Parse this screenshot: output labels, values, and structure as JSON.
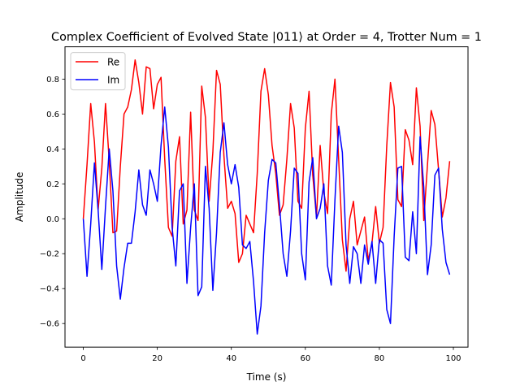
{
  "chart_data": {
    "type": "line",
    "title": "Complex Coefficient of Evolved State |011⟩ at Order = 4, Trotter Num = 1",
    "xlabel": "Time (s)",
    "ylabel": "Amplitude",
    "xlim": [
      -4.95,
      103.95
    ],
    "ylim": [
      -0.735,
      0.985
    ],
    "xticks": [
      0,
      20,
      40,
      60,
      80,
      100
    ],
    "yticks": [
      -0.6,
      -0.4,
      -0.2,
      0.0,
      0.2,
      0.4,
      0.6,
      0.8
    ],
    "xtick_labels": [
      "0",
      "20",
      "40",
      "60",
      "80",
      "100"
    ],
    "ytick_labels": [
      "−0.6",
      "−0.4",
      "−0.2",
      "0.0",
      "0.2",
      "0.4",
      "0.6",
      "0.8"
    ],
    "grid": false,
    "legend_position": "top-left",
    "x": [
      0,
      1,
      2,
      3,
      4,
      5,
      6,
      7,
      8,
      9,
      10,
      11,
      12,
      13,
      14,
      15,
      16,
      17,
      18,
      19,
      20,
      21,
      22,
      23,
      24,
      25,
      26,
      27,
      28,
      29,
      30,
      31,
      32,
      33,
      34,
      35,
      36,
      37,
      38,
      39,
      40,
      41,
      42,
      43,
      44,
      45,
      46,
      47,
      48,
      49,
      50,
      51,
      52,
      53,
      54,
      55,
      56,
      57,
      58,
      59,
      60,
      61,
      62,
      63,
      64,
      65,
      66,
      67,
      68,
      69,
      70,
      71,
      72,
      73,
      74,
      75,
      76,
      77,
      78,
      79,
      80,
      81,
      82,
      83,
      84,
      85,
      86,
      87,
      88,
      89,
      90,
      91,
      92,
      93,
      94,
      95,
      96,
      97,
      98,
      99
    ],
    "series": [
      {
        "name": "Re",
        "color": "#ff0000",
        "values": [
          0.0,
          0.31,
          0.66,
          0.44,
          0.05,
          0.29,
          0.66,
          0.33,
          -0.08,
          -0.07,
          0.3,
          0.6,
          0.64,
          0.74,
          0.91,
          0.78,
          0.6,
          0.87,
          0.86,
          0.63,
          0.77,
          0.81,
          0.34,
          -0.05,
          -0.1,
          0.33,
          0.47,
          -0.03,
          0.05,
          0.61,
          0.05,
          -0.01,
          0.76,
          0.58,
          0.1,
          0.38,
          0.85,
          0.77,
          0.36,
          0.06,
          0.1,
          0.03,
          -0.25,
          -0.2,
          0.02,
          -0.03,
          -0.08,
          0.26,
          0.73,
          0.86,
          0.71,
          0.42,
          0.26,
          0.02,
          0.08,
          0.34,
          0.66,
          0.52,
          0.1,
          0.06,
          0.52,
          0.73,
          0.25,
          0.01,
          0.42,
          0.15,
          0.03,
          0.6,
          0.8,
          0.34,
          -0.12,
          -0.3,
          0.0,
          0.1,
          -0.15,
          -0.07,
          0.01,
          -0.24,
          -0.14,
          0.07,
          -0.14,
          -0.05,
          0.42,
          0.78,
          0.64,
          0.11,
          0.07,
          0.51,
          0.45,
          0.31,
          0.75,
          0.53,
          -0.01,
          0.31,
          0.62,
          0.54,
          0.28,
          0.01,
          0.12,
          0.33
        ]
      },
      {
        "name": "Im",
        "color": "#0000ff",
        "values": [
          0.0,
          -0.33,
          -0.03,
          0.32,
          0.05,
          -0.29,
          0.07,
          0.4,
          0.16,
          -0.27,
          -0.46,
          -0.28,
          -0.14,
          -0.14,
          0.04,
          0.28,
          0.08,
          0.02,
          0.28,
          0.2,
          0.1,
          0.42,
          0.64,
          0.41,
          -0.05,
          -0.27,
          0.16,
          0.2,
          -0.37,
          -0.05,
          0.2,
          -0.44,
          -0.39,
          0.3,
          0.06,
          -0.41,
          -0.08,
          0.38,
          0.55,
          0.31,
          0.2,
          0.31,
          0.18,
          -0.15,
          -0.17,
          -0.13,
          -0.36,
          -0.66,
          -0.5,
          -0.08,
          0.22,
          0.34,
          0.32,
          0.08,
          -0.2,
          -0.33,
          -0.07,
          0.29,
          0.26,
          -0.2,
          -0.35,
          0.21,
          0.35,
          0.0,
          0.06,
          0.2,
          -0.27,
          -0.38,
          0.11,
          0.53,
          0.38,
          -0.15,
          -0.37,
          -0.16,
          -0.2,
          -0.37,
          -0.15,
          -0.26,
          -0.13,
          -0.37,
          -0.12,
          -0.14,
          -0.52,
          -0.6,
          -0.1,
          0.29,
          0.3,
          -0.22,
          -0.24,
          0.04,
          -0.2,
          0.47,
          0.18,
          -0.32,
          -0.15,
          0.25,
          0.29,
          -0.06,
          -0.25,
          -0.32
        ]
      }
    ]
  }
}
